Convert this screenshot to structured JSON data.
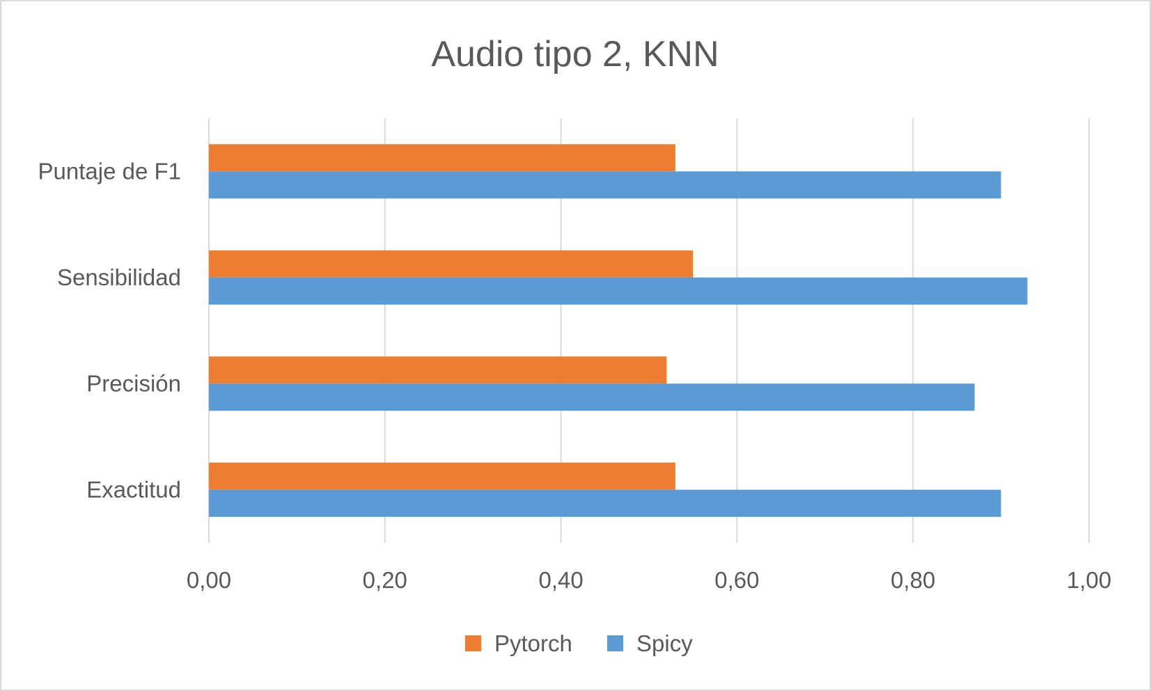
{
  "chart_data": {
    "type": "bar",
    "orientation": "horizontal",
    "title": "Audio tipo 2, KNN",
    "categories": [
      "Puntaje de F1",
      "Sensibilidad",
      "Precisión",
      "Exactitud"
    ],
    "series": [
      {
        "name": "Pytorch",
        "color": "#ED7D31",
        "values": [
          0.53,
          0.55,
          0.52,
          0.53
        ]
      },
      {
        "name": "Spicy",
        "color": "#5B9BD5",
        "values": [
          0.9,
          0.93,
          0.87,
          0.9
        ]
      }
    ],
    "xlim": [
      0,
      1
    ],
    "xticks": [
      "0,00",
      "0,20",
      "0,40",
      "0,60",
      "0,80",
      "1,00"
    ],
    "grid": "vertical",
    "legend_position": "bottom"
  }
}
